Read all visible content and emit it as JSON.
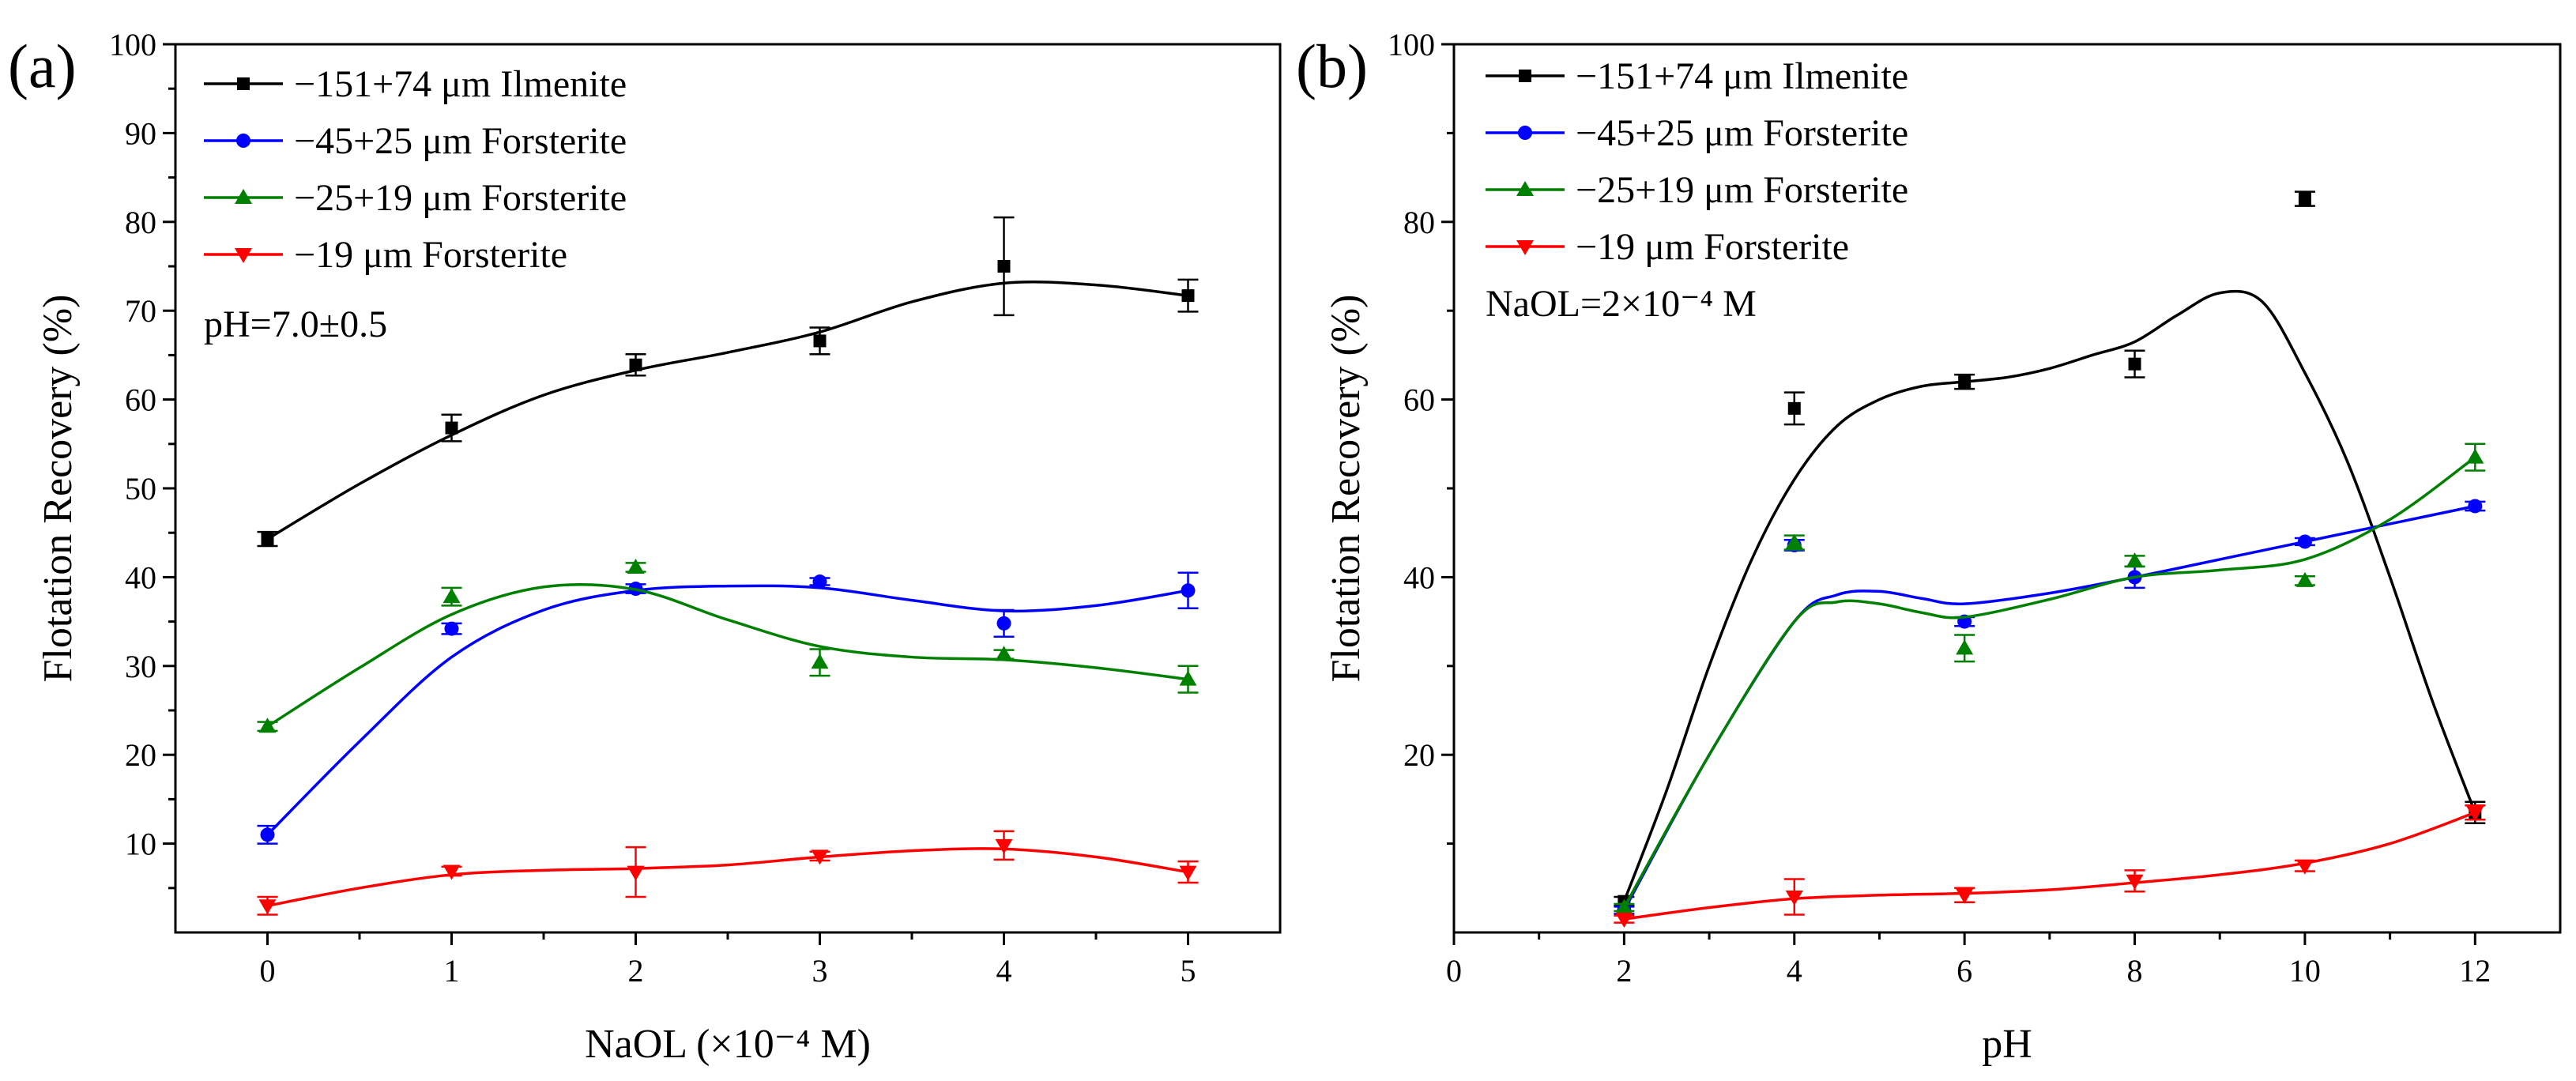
{
  "chart_data": [
    {
      "type": "line",
      "panel_label": "(a)",
      "xlabel": "NaOL (×10⁻⁴ M)",
      "ylabel": "Flotation Recovery (%)",
      "xlim": [
        -0.5,
        5.5
      ],
      "ylim": [
        0,
        100
      ],
      "xticks": [
        0,
        1,
        2,
        3,
        4,
        5
      ],
      "yticks": [
        10,
        20,
        30,
        40,
        50,
        60,
        70,
        80,
        90,
        100
      ],
      "annotation": "pH=7.0±0.5",
      "legend_position": "top-left",
      "series": [
        {
          "name": "−151+74 μm Ilmenite",
          "color": "#000000",
          "marker": "square",
          "x": [
            0,
            1,
            2,
            3,
            4,
            5
          ],
          "y": [
            44.3,
            56.8,
            63.9,
            66.6,
            75.0,
            71.7
          ],
          "err": [
            0.8,
            1.5,
            1.2,
            1.5,
            5.5,
            1.8
          ],
          "fit_x": [
            0,
            0.5,
            1,
            1.5,
            2,
            2.5,
            3,
            3.5,
            4,
            4.5,
            5
          ],
          "fit_y": [
            44.3,
            50.5,
            56.0,
            60.5,
            63.3,
            65.3,
            67.6,
            71.0,
            73.1,
            72.9,
            71.7
          ]
        },
        {
          "name": "−45+25 μm Forsterite",
          "color": "#0000ff",
          "marker": "circle",
          "x": [
            0,
            1,
            2,
            3,
            4,
            5
          ],
          "y": [
            11.0,
            34.2,
            38.7,
            39.5,
            34.8,
            38.5
          ],
          "err": [
            1.0,
            0.6,
            0.5,
            0.4,
            1.5,
            2.0
          ],
          "fit_x": [
            0,
            0.5,
            1,
            1.5,
            2,
            2.5,
            3,
            3.5,
            4,
            4.5,
            5
          ],
          "fit_y": [
            11.0,
            21.5,
            31.0,
            36.3,
            38.5,
            39.0,
            38.8,
            37.4,
            36.2,
            36.8,
            38.5
          ]
        },
        {
          "name": "−25+19 μm Forsterite",
          "color": "#008000",
          "marker": "triangle-up",
          "x": [
            0,
            1,
            2,
            3,
            4,
            5
          ],
          "y": [
            23.2,
            37.8,
            41.1,
            30.4,
            31.3,
            28.5
          ],
          "err": [
            0.5,
            1.0,
            0.5,
            1.5,
            0.5,
            1.5
          ],
          "fit_x": [
            0,
            0.5,
            1,
            1.5,
            2,
            2.5,
            3,
            3.5,
            4,
            4.5,
            5
          ],
          "fit_y": [
            23.2,
            29.8,
            35.8,
            38.9,
            38.6,
            35.2,
            32.2,
            31.0,
            30.7,
            29.8,
            28.5
          ]
        },
        {
          "name": "−19 μm Forsterite",
          "color": "#ff0000",
          "marker": "triangle-down",
          "x": [
            0,
            1,
            2,
            3,
            4,
            5
          ],
          "y": [
            3.0,
            6.9,
            6.8,
            8.6,
            9.8,
            6.8
          ],
          "err": [
            1.0,
            0.5,
            2.8,
            0.5,
            1.6,
            1.2
          ],
          "fit_x": [
            0,
            0.5,
            1,
            1.5,
            2,
            2.5,
            3,
            3.5,
            4,
            4.5,
            5
          ],
          "fit_y": [
            3.0,
            5.0,
            6.5,
            7.0,
            7.2,
            7.6,
            8.5,
            9.2,
            9.4,
            8.5,
            6.8
          ]
        }
      ]
    },
    {
      "type": "line",
      "panel_label": "(b)",
      "xlabel": "pH",
      "ylabel": "Flotation Recovery (%)",
      "xlim": [
        0,
        13
      ],
      "ylim": [
        0,
        100
      ],
      "xticks": [
        0,
        2,
        4,
        6,
        8,
        10,
        12
      ],
      "yticks": [
        20,
        40,
        60,
        80,
        100
      ],
      "annotation": "NaOL=2×10⁻⁴ M",
      "legend_position": "top-left",
      "series": [
        {
          "name": "−151+74 μm Ilmenite",
          "color": "#000000",
          "marker": "square",
          "x": [
            2,
            4,
            6,
            8,
            10,
            12
          ],
          "y": [
            3.5,
            59.0,
            62.0,
            64.0,
            82.6,
            13.5
          ],
          "err": [
            0.5,
            1.8,
            0.8,
            1.5,
            0.8,
            1.2
          ],
          "fit_x": [
            2,
            2.5,
            3,
            3.5,
            4,
            4.5,
            5,
            5.5,
            6,
            6.5,
            7,
            7.5,
            8,
            8.5,
            9,
            9.5,
            10,
            10.5,
            11,
            11.5,
            12
          ],
          "fit_y": [
            3.5,
            16.0,
            30.0,
            42.0,
            51.0,
            57.0,
            60.0,
            61.5,
            62.0,
            62.5,
            63.5,
            65.0,
            66.5,
            69.5,
            72.0,
            71.0,
            63.0,
            53.0,
            40.0,
            26.0,
            13.5
          ]
        },
        {
          "name": "−45+25 μm Forsterite",
          "color": "#0000ff",
          "marker": "circle",
          "x": [
            2,
            4,
            6,
            8,
            10,
            12
          ],
          "y": [
            2.5,
            43.6,
            35.0,
            40.0,
            44.0,
            48.0
          ],
          "err": [
            0.4,
            0.6,
            0.5,
            1.2,
            0.4,
            0.5
          ],
          "fit_x": [
            2,
            3,
            4,
            4.5,
            5,
            5.5,
            6,
            7,
            8,
            9,
            10,
            11,
            12
          ],
          "fit_y": [
            2.5,
            20.0,
            35.0,
            38.0,
            38.4,
            37.6,
            37.0,
            38.2,
            40.0,
            42.0,
            44.0,
            46.0,
            48.0
          ]
        },
        {
          "name": "−25+19 μm Forsterite",
          "color": "#008000",
          "marker": "triangle-up",
          "x": [
            2,
            4,
            6,
            8,
            10,
            12
          ],
          "y": [
            2.8,
            43.9,
            32.0,
            41.8,
            39.6,
            53.5
          ],
          "err": [
            0.4,
            0.8,
            1.5,
            0.6,
            0.5,
            1.5
          ],
          "fit_x": [
            2,
            3,
            4,
            4.5,
            5,
            5.5,
            6,
            7,
            8,
            9,
            10,
            11,
            12
          ],
          "fit_y": [
            2.8,
            20.0,
            35.0,
            37.2,
            37.0,
            36.0,
            35.5,
            37.5,
            40.0,
            40.8,
            42.0,
            46.5,
            53.5
          ]
        },
        {
          "name": "−19 μm Forsterite",
          "color": "#ff0000",
          "marker": "triangle-down",
          "x": [
            2,
            4,
            6,
            8,
            10,
            12
          ],
          "y": [
            1.5,
            4.0,
            4.2,
            5.8,
            7.5,
            13.5
          ],
          "err": [
            0.4,
            2.0,
            0.8,
            1.2,
            0.6,
            0.8
          ],
          "fit_x": [
            2,
            3,
            4,
            5,
            6,
            7,
            8,
            9,
            10,
            11,
            12
          ],
          "fit_y": [
            1.5,
            2.8,
            3.8,
            4.2,
            4.4,
            4.8,
            5.6,
            6.5,
            7.8,
            10.0,
            13.5
          ]
        }
      ]
    }
  ]
}
